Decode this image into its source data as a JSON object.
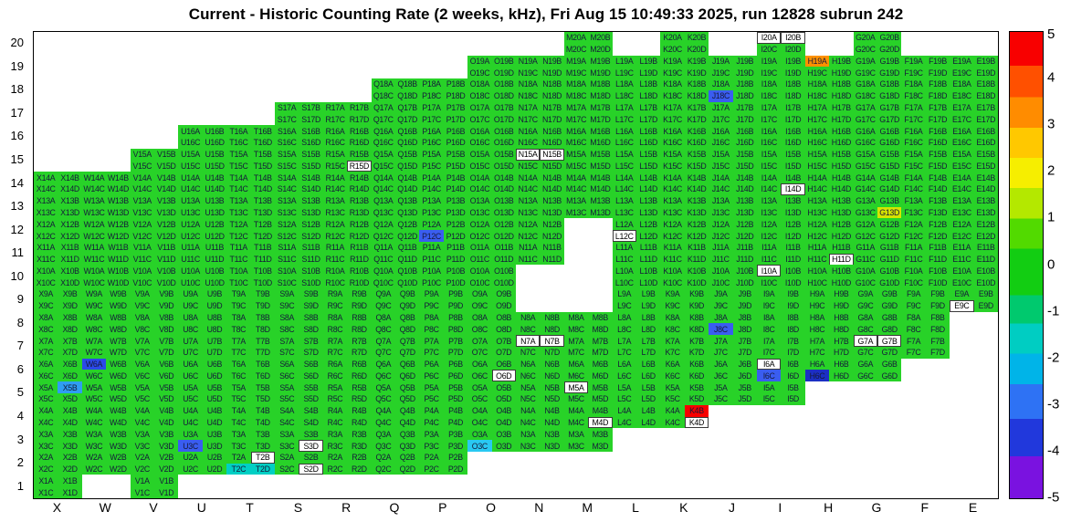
{
  "chart_data": {
    "type": "heatmap",
    "title": "Current - Historic Counting Rate (2 weeks, kHz), Fri Aug 15 10:49:33 2025, run 12828 subrun 242",
    "x_categories": [
      "X",
      "W",
      "V",
      "U",
      "T",
      "S",
      "R",
      "Q",
      "P",
      "O",
      "N",
      "M",
      "L",
      "K",
      "J",
      "I",
      "H",
      "G",
      "F",
      "E"
    ],
    "y_categories": [
      "20",
      "19",
      "18",
      "17",
      "16",
      "15",
      "14",
      "13",
      "12",
      "11",
      "10",
      "9",
      "8",
      "7",
      "6",
      "5",
      "4",
      "3",
      "2",
      "1"
    ],
    "zlim": [
      -5,
      5
    ],
    "grid_on": false,
    "legend_position": "right-colorbar",
    "cell_color": "#28d228",
    "label_color": "#151a3a",
    "masked_color": "#ffffff",
    "channel_pairs": [
      [
        "A",
        "B"
      ],
      [
        "C",
        "D"
      ]
    ],
    "colorbar_ticks": [
      "5",
      "4",
      "3",
      "2",
      "1",
      "0",
      "-1",
      "-2",
      "-3",
      "-4",
      "-5"
    ],
    "colorbar_stops": [
      [
        "#f80000",
        0.0,
        0.072
      ],
      [
        "#ff5000",
        0.072,
        0.14
      ],
      [
        "#ff8c00",
        0.14,
        0.205
      ],
      [
        "#ffc800",
        0.205,
        0.27
      ],
      [
        "#f6ee00",
        0.27,
        0.335
      ],
      [
        "#b4e800",
        0.335,
        0.4
      ],
      [
        "#52da00",
        0.4,
        0.465
      ],
      [
        "#12cd12",
        0.465,
        0.565
      ],
      [
        "#00c96e",
        0.565,
        0.625
      ],
      [
        "#00cdc2",
        0.625,
        0.69
      ],
      [
        "#00b4e8",
        0.69,
        0.755
      ],
      [
        "#2e72f4",
        0.755,
        0.83
      ],
      [
        "#2138dc",
        0.83,
        0.91
      ],
      [
        "#7a12e0",
        0.91,
        1.0
      ]
    ],
    "occupancy": {
      "20": [
        "M",
        "K",
        "I",
        "G"
      ],
      "19": [
        "O",
        "N",
        "M",
        "L",
        "K",
        "J",
        "I",
        "H",
        "G",
        "F",
        "E"
      ],
      "18": [
        "Q",
        "P",
        "O",
        "N",
        "M",
        "L",
        "K",
        "J",
        "I",
        "H",
        "G",
        "F",
        "E"
      ],
      "17": [
        "S",
        "R",
        "Q",
        "P",
        "O",
        "N",
        "M",
        "L",
        "K",
        "J",
        "I",
        "H",
        "G",
        "F",
        "E"
      ],
      "16": [
        "U",
        "T",
        "S",
        "R",
        "Q",
        "P",
        "O",
        "N",
        "M",
        "L",
        "K",
        "J",
        "I",
        "H",
        "G",
        "F",
        "E"
      ],
      "15": [
        "V",
        "U",
        "T",
        "S",
        "R",
        "Q",
        "P",
        "O",
        "N",
        "M",
        "L",
        "K",
        "J",
        "I",
        "H",
        "G",
        "F",
        "E"
      ],
      "14": [
        "X",
        "W",
        "V",
        "U",
        "T",
        "S",
        "R",
        "Q",
        "P",
        "O",
        "N",
        "M",
        "L",
        "K",
        "J",
        "I",
        "H",
        "G",
        "F",
        "E"
      ],
      "13": [
        "X",
        "W",
        "V",
        "U",
        "T",
        "S",
        "R",
        "Q",
        "P",
        "O",
        "N",
        "M",
        "L",
        "K",
        "J",
        "I",
        "H",
        "G",
        "F",
        "E"
      ],
      "12": [
        "X",
        "W",
        "V",
        "U",
        "T",
        "S",
        "R",
        "Q",
        "P",
        "O",
        "N",
        "L",
        "K",
        "J",
        "I",
        "H",
        "G",
        "F",
        "E"
      ],
      "11": [
        "X",
        "W",
        "V",
        "U",
        "T",
        "S",
        "R",
        "Q",
        "P",
        "O",
        "N",
        "L",
        "K",
        "J",
        "I",
        "H",
        "G",
        "F",
        "E"
      ],
      "10": [
        "X",
        "W",
        "V",
        "U",
        "T",
        "S",
        "R",
        "Q",
        "P",
        "O",
        "L",
        "K",
        "J",
        "I",
        "H",
        "G",
        "F",
        "E"
      ],
      "9": [
        "X",
        "W",
        "V",
        "U",
        "T",
        "S",
        "R",
        "Q",
        "P",
        "O",
        "L",
        "K",
        "J",
        "I",
        "H",
        "G",
        "F",
        "E"
      ],
      "8": [
        "X",
        "W",
        "V",
        "U",
        "T",
        "S",
        "R",
        "Q",
        "P",
        "O",
        "N",
        "M",
        "L",
        "K",
        "J",
        "I",
        "H",
        "G",
        "F"
      ],
      "7": [
        "X",
        "W",
        "V",
        "U",
        "T",
        "S",
        "R",
        "Q",
        "P",
        "O",
        "N",
        "M",
        "L",
        "K",
        "J",
        "I",
        "H",
        "G",
        "F"
      ],
      "6": [
        "X",
        "W",
        "V",
        "U",
        "T",
        "S",
        "R",
        "Q",
        "P",
        "O",
        "N",
        "M",
        "L",
        "K",
        "J",
        "I",
        "H",
        "G"
      ],
      "5": [
        "X",
        "W",
        "V",
        "U",
        "T",
        "S",
        "R",
        "Q",
        "P",
        "O",
        "N",
        "M",
        "L",
        "K",
        "J",
        "I"
      ],
      "4": [
        "X",
        "W",
        "V",
        "U",
        "T",
        "S",
        "R",
        "Q",
        "P",
        "O",
        "N",
        "M",
        "L",
        "K"
      ],
      "3": [
        "X",
        "W",
        "V",
        "U",
        "T",
        "S",
        "R",
        "Q",
        "P",
        "O",
        "N",
        "M"
      ],
      "2": [
        "X",
        "W",
        "V",
        "U",
        "T",
        "S",
        "R",
        "Q",
        "P"
      ],
      "1": [
        "X",
        "V"
      ]
    },
    "special_channels": {
      "I20A": "masked",
      "I20B": "masked",
      "H19A": "#ff9100",
      "J18C": "#3a5df0",
      "N15A": "masked",
      "N15B": "masked",
      "R15D": "masked",
      "I14D": "masked",
      "G13D": "#d6e300",
      "P12C": "#3a5df0",
      "L12C": "masked",
      "H11D": "masked",
      "I10A": "masked",
      "E9C": "masked",
      "J8C": "#3a5df0",
      "G7A": "masked",
      "G7B": "masked",
      "N7A": "masked",
      "N7B": "masked",
      "W6A": "#2b49e8",
      "I6A": "masked",
      "I6C": "#3a5df0",
      "H6C": "#1c2fc4",
      "O6D": "masked",
      "X5B": "#2f9df2",
      "M5A": "masked",
      "K4B": "#f80000",
      "K4D": "masked",
      "M4D": "masked",
      "U3C": "#3a5df0",
      "O3C": "#29c9f2",
      "S3D": "masked",
      "T2B": "masked",
      "T2C": "#00cfc4",
      "T2D": "#00cfc4",
      "S2D": "masked"
    }
  }
}
